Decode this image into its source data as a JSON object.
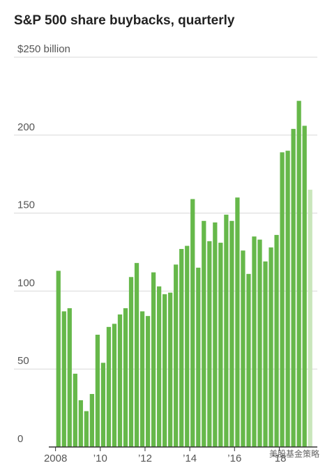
{
  "chart_data": {
    "type": "bar",
    "title": "S&P 500 share buybacks, quarterly",
    "x": [
      2008,
      2008.25,
      2008.5,
      2008.75,
      2009,
      2009.25,
      2009.5,
      2009.75,
      2010,
      2010.25,
      2010.5,
      2010.75,
      2011,
      2011.25,
      2011.5,
      2011.75,
      2012,
      2012.25,
      2012.5,
      2012.75,
      2013,
      2013.25,
      2013.5,
      2013.75,
      2014,
      2014.25,
      2014.5,
      2014.75,
      2015,
      2015.25,
      2015.5,
      2015.75,
      2016,
      2016.25,
      2016.5,
      2016.75,
      2017,
      2017.25,
      2017.5,
      2017.75,
      2018,
      2018.25,
      2018.5,
      2018.75,
      2019,
      2019.25
    ],
    "values": [
      113,
      87,
      89,
      47,
      30,
      23,
      34,
      72,
      54,
      77,
      79,
      85,
      89,
      109,
      118,
      87,
      84,
      112,
      103,
      98,
      99,
      117,
      127,
      129,
      159,
      115,
      145,
      132,
      144,
      131,
      149,
      145,
      160,
      126,
      111,
      135,
      133,
      119,
      128,
      136,
      189,
      190,
      204,
      222,
      206,
      165
    ],
    "color": "#66b84a",
    "preliminary_color": "#c9e6bb",
    "xlim": [
      2007.7,
      2019.7
    ],
    "xticks": [
      {
        "value": 2008,
        "label": "2008"
      },
      {
        "value": 2010,
        "label": "’10"
      },
      {
        "value": 2012,
        "label": "’12"
      },
      {
        "value": 2014,
        "label": "’14"
      },
      {
        "value": 2016,
        "label": "’16"
      },
      {
        "value": 2018,
        "label": "’18"
      }
    ],
    "ylim": [
      0,
      250
    ],
    "yticks": [
      0,
      50,
      100,
      150,
      200,
      {
        "value": 250,
        "label": "$250 billion"
      }
    ],
    "grid": true,
    "watermark": "美股基金策略"
  }
}
